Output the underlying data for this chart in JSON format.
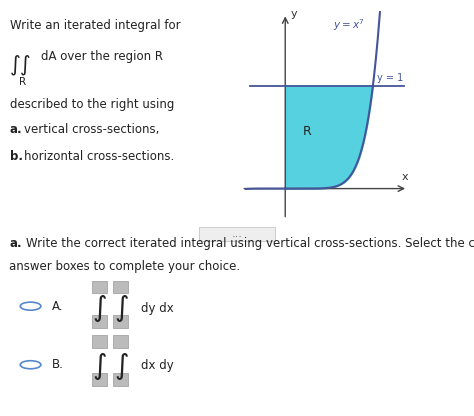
{
  "background_color": "#ffffff",
  "font_color": "#222222",
  "title_text": "Write an iterated integral for",
  "description_line1": "described to the right using",
  "description_line2_bold": "a.",
  "description_line2_rest": " vertical cross-sections,",
  "description_line3_bold": "b.",
  "description_line3_rest": " horizontal cross-sections.",
  "graph_region_color": "#44ccdd",
  "graph_curve_color": "#445599",
  "graph_bg": "#ffffff",
  "divider_color": "#bbbbbb",
  "part_a_bold": "a.",
  "part_a_rest": " Write the correct iterated integral using vertical cross-sections. Select the correct answer belo",
  "part_a_line2": "answer boxes to complete your choice.",
  "option_A_text": "dy dx",
  "option_B_text": "dx dy",
  "box_color": "#bbbbbb",
  "radio_border": "#5588cc",
  "dots_text": "..."
}
